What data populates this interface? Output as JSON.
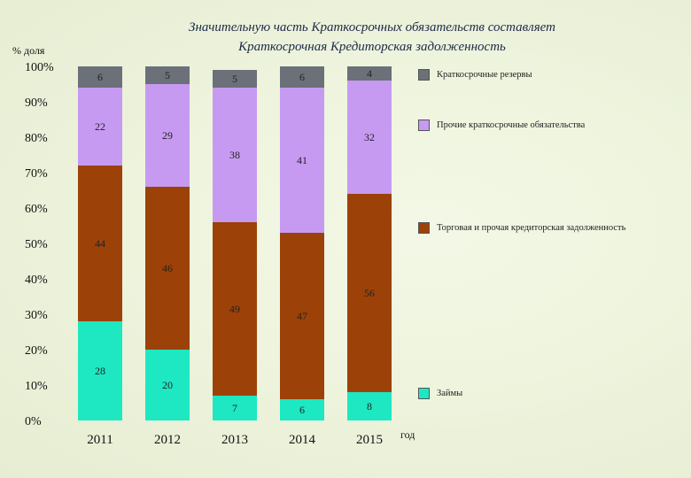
{
  "page": {
    "title_line1": "Значительную часть Краткосрочных  обязательств составляет",
    "title_line2": "Краткосрочная Кредиторская задолженность"
  },
  "chart_data": {
    "type": "bar",
    "stacked": true,
    "title": "Значительную часть Краткосрочных  обязательств составляет Краткосрочная Кредиторская задолженность",
    "xlabel": "год",
    "ylabel": "% доля",
    "ylim": [
      0,
      100
    ],
    "yticks": [
      "0%",
      "10%",
      "20%",
      "30%",
      "40%",
      "50%",
      "60%",
      "70%",
      "80%",
      "90%",
      "100%"
    ],
    "grid": false,
    "legend_placement": "right",
    "categories": [
      "2011",
      "2012",
      "2013",
      "2014",
      "2015"
    ],
    "series": [
      {
        "name": "Займы",
        "color": "#1de8c2",
        "values": [
          28,
          20,
          7,
          6,
          8
        ]
      },
      {
        "name": "Торговая и прочая кредиторская задолженность",
        "color": "#9c4209",
        "values": [
          44,
          46,
          49,
          47,
          56
        ]
      },
      {
        "name": "Прочие краткосрочные обязательства",
        "color": "#c79af2",
        "values": [
          22,
          29,
          38,
          41,
          32
        ]
      },
      {
        "name": "Краткосрочные резервы",
        "color": "#6b7079",
        "values": [
          6,
          5,
          5,
          6,
          4
        ]
      }
    ]
  }
}
